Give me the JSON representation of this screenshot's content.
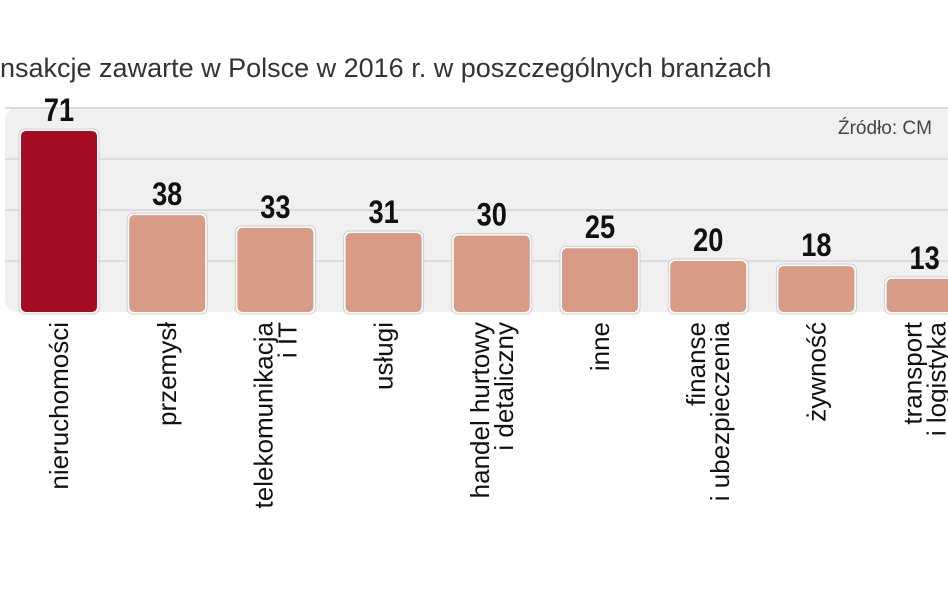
{
  "chart_data": {
    "type": "bar",
    "title": "nsakcje zawarte w Polsce w 2016 r. w poszczególnych branżach",
    "source": "Źródło: CM",
    "categories": [
      [
        "nieruchomości"
      ],
      [
        "przemysł"
      ],
      [
        "telekomunikacja",
        "i IT"
      ],
      [
        "usługi"
      ],
      [
        "handel hurtowy",
        "i detaliczny"
      ],
      [
        "inne"
      ],
      [
        "finanse",
        "i ubezpieczenia"
      ],
      [
        "żywność"
      ],
      [
        "transport",
        "i logistyka"
      ]
    ],
    "values": [
      71,
      38,
      33,
      31,
      30,
      25,
      20,
      18,
      13
    ],
    "ylim": [
      0,
      80
    ],
    "grid": true,
    "colors": {
      "highlight": "#a50d25",
      "bar": "#d89c86",
      "plot_bg": "#f0f0f0",
      "grid": "#dcdcdc"
    }
  }
}
